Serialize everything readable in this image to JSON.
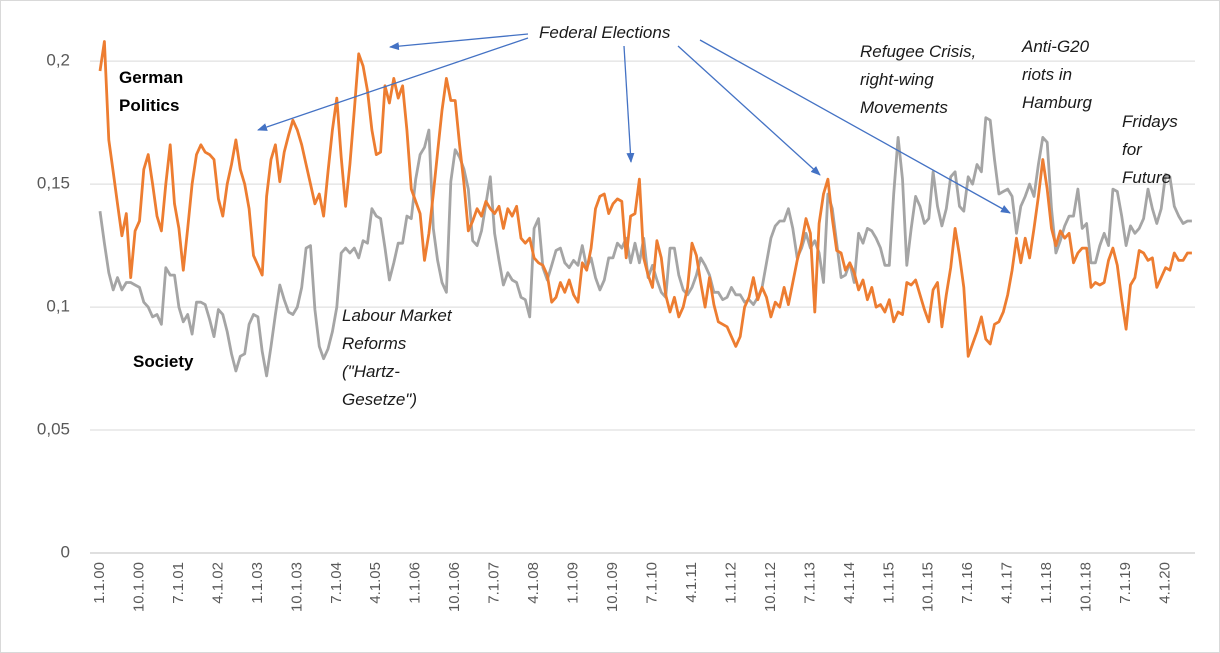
{
  "chart_data": {
    "type": "line",
    "categories": [
      "1.1.00",
      null,
      null,
      null,
      null,
      null,
      null,
      null,
      null,
      "10.1.00",
      null,
      null,
      null,
      null,
      null,
      null,
      null,
      null,
      "7.1.01",
      null,
      null,
      null,
      null,
      null,
      null,
      null,
      null,
      "4.1.02",
      null,
      null,
      null,
      null,
      null,
      null,
      null,
      null,
      "1.1.03",
      null,
      null,
      null,
      null,
      null,
      null,
      null,
      null,
      "10.1.03",
      null,
      null,
      null,
      null,
      null,
      null,
      null,
      null,
      "7.1.04",
      null,
      null,
      null,
      null,
      null,
      null,
      null,
      null,
      "4.1.05",
      null,
      null,
      null,
      null,
      null,
      null,
      null,
      null,
      "1.1.06",
      null,
      null,
      null,
      null,
      null,
      null,
      null,
      null,
      "10.1.06",
      null,
      null,
      null,
      null,
      null,
      null,
      null,
      null,
      "7.1.07",
      null,
      null,
      null,
      null,
      null,
      null,
      null,
      null,
      "4.1.08",
      null,
      null,
      null,
      null,
      null,
      null,
      null,
      null,
      "1.1.09",
      null,
      null,
      null,
      null,
      null,
      null,
      null,
      null,
      "10.1.09",
      null,
      null,
      null,
      null,
      null,
      null,
      null,
      null,
      "7.1.10",
      null,
      null,
      null,
      null,
      null,
      null,
      null,
      null,
      "4.1.11",
      null,
      null,
      null,
      null,
      null,
      null,
      null,
      null,
      "1.1.12",
      null,
      null,
      null,
      null,
      null,
      null,
      null,
      null,
      "10.1.12",
      null,
      null,
      null,
      null,
      null,
      null,
      null,
      null,
      "7.1.13",
      null,
      null,
      null,
      null,
      null,
      null,
      null,
      null,
      "4.1.14",
      null,
      null,
      null,
      null,
      null,
      null,
      null,
      null,
      "1.1.15",
      null,
      null,
      null,
      null,
      null,
      null,
      null,
      null,
      "10.1.15",
      null,
      null,
      null,
      null,
      null,
      null,
      null,
      null,
      "7.1.16",
      null,
      null,
      null,
      null,
      null,
      null,
      null,
      null,
      "4.1.17",
      null,
      null,
      null,
      null,
      null,
      null,
      null,
      null,
      "1.1.18",
      null,
      null,
      null,
      null,
      null,
      null,
      null,
      null,
      "10.1.18",
      null,
      null,
      null,
      null,
      null,
      null,
      null,
      null,
      "7.1.19",
      null,
      null,
      null,
      null,
      null,
      null,
      null,
      null,
      "4.1.20",
      null,
      null,
      null,
      null,
      null,
      null
    ],
    "series": [
      {
        "name": "German Politics",
        "color": "#ed7d31",
        "values": [
          0.196,
          0.208,
          0.168,
          0.155,
          0.142,
          0.129,
          0.138,
          0.112,
          0.131,
          0.135,
          0.156,
          0.162,
          0.15,
          0.137,
          0.131,
          0.15,
          0.166,
          0.142,
          0.132,
          0.115,
          0.132,
          0.15,
          0.162,
          0.166,
          0.163,
          0.162,
          0.16,
          0.144,
          0.137,
          0.15,
          0.158,
          0.168,
          0.156,
          0.15,
          0.14,
          0.121,
          0.117,
          0.113,
          0.145,
          0.16,
          0.166,
          0.151,
          0.163,
          0.17,
          0.176,
          0.172,
          0.166,
          0.158,
          0.15,
          0.142,
          0.146,
          0.137,
          0.155,
          0.172,
          0.185,
          0.161,
          0.141,
          0.158,
          0.18,
          0.203,
          0.198,
          0.188,
          0.172,
          0.162,
          0.163,
          0.19,
          0.183,
          0.193,
          0.185,
          0.19,
          0.172,
          0.148,
          0.143,
          0.138,
          0.119,
          0.13,
          0.146,
          0.163,
          0.18,
          0.193,
          0.184,
          0.184,
          0.166,
          0.15,
          0.131,
          0.135,
          0.14,
          0.137,
          0.143,
          0.14,
          0.138,
          0.141,
          0.132,
          0.14,
          0.137,
          0.141,
          0.128,
          0.126,
          0.128,
          0.12,
          0.118,
          0.117,
          0.113,
          0.102,
          0.104,
          0.11,
          0.106,
          0.111,
          0.105,
          0.102,
          0.118,
          0.115,
          0.124,
          0.14,
          0.145,
          0.146,
          0.138,
          0.142,
          0.144,
          0.143,
          0.12,
          0.137,
          0.138,
          0.152,
          0.12,
          0.113,
          0.108,
          0.127,
          0.12,
          0.105,
          0.098,
          0.104,
          0.096,
          0.1,
          0.108,
          0.126,
          0.121,
          0.11,
          0.1,
          0.112,
          0.101,
          0.094,
          0.093,
          0.092,
          0.088,
          0.084,
          0.088,
          0.1,
          0.104,
          0.112,
          0.103,
          0.108,
          0.104,
          0.096,
          0.102,
          0.1,
          0.108,
          0.101,
          0.11,
          0.119,
          0.126,
          0.136,
          0.13,
          0.098,
          0.134,
          0.146,
          0.152,
          0.136,
          0.123,
          0.122,
          0.115,
          0.118,
          0.114,
          0.107,
          0.111,
          0.103,
          0.108,
          0.1,
          0.101,
          0.098,
          0.103,
          0.094,
          0.098,
          0.097,
          0.11,
          0.109,
          0.111,
          0.105,
          0.099,
          0.094,
          0.107,
          0.11,
          0.092,
          0.105,
          0.116,
          0.132,
          0.121,
          0.108,
          0.08,
          0.085,
          0.09,
          0.096,
          0.087,
          0.085,
          0.093,
          0.094,
          0.098,
          0.105,
          0.115,
          0.128,
          0.118,
          0.128,
          0.12,
          0.132,
          0.145,
          0.16,
          0.148,
          0.132,
          0.125,
          0.131,
          0.128,
          0.13,
          0.118,
          0.122,
          0.124,
          0.124,
          0.108,
          0.11,
          0.109,
          0.11,
          0.119,
          0.124,
          0.117,
          0.103,
          0.091,
          0.109,
          0.112,
          0.123,
          0.122,
          0.119,
          0.12,
          0.108,
          0.112,
          0.116,
          0.115,
          0.122,
          0.119,
          0.119,
          0.122,
          0.122
        ]
      },
      {
        "name": "Society",
        "color": "#a5a5a5",
        "values": [
          0.139,
          0.126,
          0.114,
          0.107,
          0.112,
          0.107,
          0.11,
          0.11,
          0.109,
          0.108,
          0.102,
          0.1,
          0.096,
          0.097,
          0.093,
          0.116,
          0.113,
          0.113,
          0.1,
          0.094,
          0.097,
          0.089,
          0.102,
          0.102,
          0.101,
          0.095,
          0.088,
          0.099,
          0.097,
          0.09,
          0.081,
          0.074,
          0.08,
          0.081,
          0.093,
          0.097,
          0.096,
          0.082,
          0.072,
          0.084,
          0.097,
          0.109,
          0.103,
          0.098,
          0.097,
          0.1,
          0.108,
          0.124,
          0.125,
          0.099,
          0.084,
          0.079,
          0.083,
          0.09,
          0.1,
          0.122,
          0.124,
          0.122,
          0.124,
          0.12,
          0.127,
          0.126,
          0.14,
          0.137,
          0.136,
          0.124,
          0.111,
          0.118,
          0.126,
          0.126,
          0.137,
          0.136,
          0.152,
          0.162,
          0.165,
          0.172,
          0.132,
          0.119,
          0.11,
          0.106,
          0.151,
          0.164,
          0.161,
          0.156,
          0.148,
          0.127,
          0.125,
          0.131,
          0.142,
          0.153,
          0.13,
          0.119,
          0.109,
          0.114,
          0.111,
          0.11,
          0.104,
          0.103,
          0.096,
          0.132,
          0.136,
          0.116,
          0.111,
          0.117,
          0.123,
          0.124,
          0.118,
          0.116,
          0.119,
          0.117,
          0.125,
          0.116,
          0.12,
          0.112,
          0.107,
          0.111,
          0.12,
          0.12,
          0.126,
          0.124,
          0.128,
          0.118,
          0.126,
          0.118,
          0.128,
          0.112,
          0.117,
          0.111,
          0.106,
          0.104,
          0.124,
          0.124,
          0.113,
          0.107,
          0.105,
          0.108,
          0.113,
          0.12,
          0.117,
          0.113,
          0.106,
          0.106,
          0.103,
          0.104,
          0.108,
          0.105,
          0.105,
          0.102,
          0.103,
          0.101,
          0.104,
          0.108,
          0.118,
          0.128,
          0.133,
          0.135,
          0.135,
          0.14,
          0.132,
          0.12,
          0.124,
          0.13,
          0.124,
          0.127,
          0.122,
          0.11,
          0.146,
          0.14,
          0.126,
          0.112,
          0.113,
          0.118,
          0.11,
          0.13,
          0.126,
          0.132,
          0.131,
          0.128,
          0.124,
          0.117,
          0.117,
          0.146,
          0.169,
          0.152,
          0.117,
          0.132,
          0.145,
          0.141,
          0.134,
          0.136,
          0.155,
          0.141,
          0.133,
          0.14,
          0.153,
          0.155,
          0.141,
          0.139,
          0.153,
          0.15,
          0.158,
          0.155,
          0.177,
          0.176,
          0.16,
          0.146,
          0.147,
          0.148,
          0.145,
          0.13,
          0.141,
          0.145,
          0.15,
          0.145,
          0.158,
          0.169,
          0.167,
          0.14,
          0.122,
          0.127,
          0.133,
          0.137,
          0.137,
          0.148,
          0.132,
          0.134,
          0.118,
          0.118,
          0.125,
          0.13,
          0.125,
          0.148,
          0.147,
          0.137,
          0.125,
          0.133,
          0.13,
          0.132,
          0.136,
          0.148,
          0.14,
          0.134,
          0.14,
          0.154,
          0.153,
          0.141,
          0.137,
          0.134,
          0.135,
          0.135
        ]
      }
    ],
    "ylim": [
      0,
      0.22
    ],
    "yticks": [
      0,
      {
        "value": 0.05,
        "label": "0,05"
      },
      {
        "value": 0.1,
        "label": "0,1"
      },
      {
        "value": 0.15,
        "label": "0,15"
      },
      {
        "value": 0.2,
        "label": "0,2"
      }
    ],
    "grid": true,
    "annotations": [
      "Federal Elections",
      "Labour Market Reforms (\"Hartz-Gesetze\")",
      "Refugee Crisis, right-wing Movements",
      "Anti-G20 riots in Hamburg",
      "Fridays for Future"
    ]
  }
}
